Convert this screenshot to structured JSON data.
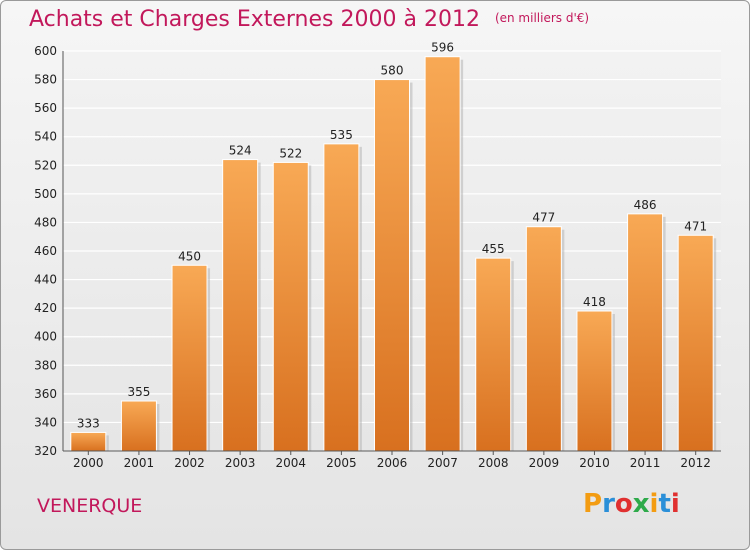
{
  "chart_data": {
    "type": "bar",
    "title": "Achats et Charges Externes 2000 à 2012",
    "subtitle": "(en milliers d'€)",
    "categories": [
      "2000",
      "2001",
      "2002",
      "2003",
      "2004",
      "2005",
      "2006",
      "2007",
      "2008",
      "2009",
      "2010",
      "2011",
      "2012"
    ],
    "values": [
      333,
      355,
      450,
      524,
      522,
      535,
      580,
      596,
      455,
      477,
      418,
      486,
      471
    ],
    "ylim": [
      320,
      600
    ],
    "yticks": [
      320,
      340,
      360,
      380,
      400,
      420,
      440,
      460,
      480,
      500,
      520,
      540,
      560,
      580,
      600
    ],
    "xlabel": "",
    "ylabel": "",
    "grid": true,
    "bar_color": "#f0953f"
  },
  "town": "VENERQUE",
  "logo": {
    "letters": [
      "P",
      "r",
      "o",
      "x",
      "i",
      "t",
      "i"
    ],
    "colors": [
      "#f39c12",
      "#2a8fd8",
      "#e03030",
      "#2eaa4a",
      "#f39c12",
      "#2a8fd8",
      "#e03030"
    ]
  }
}
